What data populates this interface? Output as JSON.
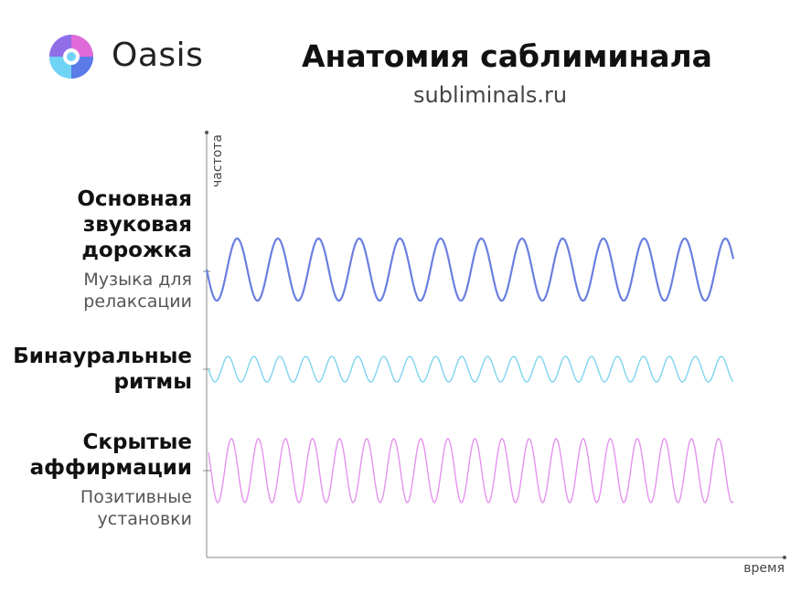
{
  "brand": {
    "name": "Oasis"
  },
  "header": {
    "title": "Анатомия саблиминала",
    "subtitle": "subliminals.ru"
  },
  "axes": {
    "y_label": "частота",
    "x_label": "время"
  },
  "layers": [
    {
      "title_lines": [
        "Основная",
        "звуковая",
        "дорожка"
      ],
      "desc_lines": [
        "Музыка для",
        "релаксации"
      ],
      "color": "#6b7fe0"
    },
    {
      "title_lines": [
        "Бинауральные",
        "ритмы"
      ],
      "desc_lines": [],
      "color": "#7fd4ef"
    },
    {
      "title_lines": [
        "Скрытые",
        "аффирмации"
      ],
      "desc_lines": [
        "Позитивные",
        "установки"
      ],
      "color": "#e592ee"
    }
  ],
  "colors": {
    "logo_blue": "#5a7be8",
    "logo_cyan": "#6fd3f5",
    "logo_pink": "#e06ad8",
    "axis": "#888888"
  }
}
